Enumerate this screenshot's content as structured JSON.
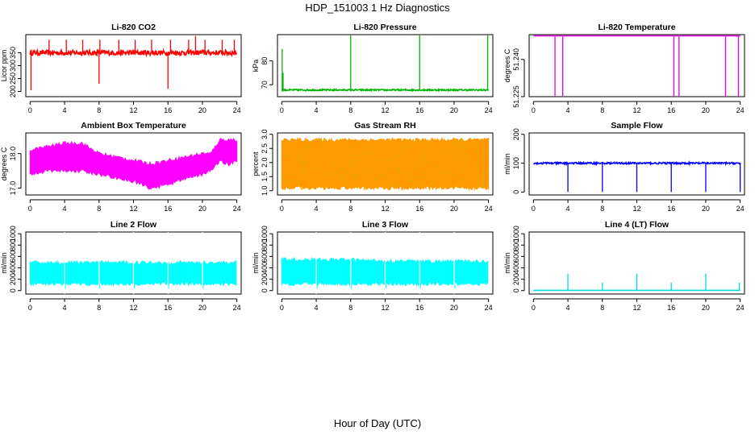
{
  "title": "HDP_151003  1 Hz Diagnostics",
  "xlabel": "Hour of Day (UTC)",
  "chart_data": [
    {
      "type": "line",
      "title": "Li-820 CO2",
      "ylabel": "Licor ppm",
      "color": "#ff0000",
      "xlim": [
        -0.5,
        24.5
      ],
      "ylim": [
        180,
        420
      ],
      "xticks": [
        "0",
        "4",
        "8",
        "12",
        "16",
        "20",
        "24"
      ],
      "yticks": [
        "200",
        "250",
        "300",
        "350"
      ],
      "baseline": 350,
      "noise": 10,
      "spikes": [
        [
          0.1,
          205
        ],
        [
          2.2,
          400
        ],
        [
          4.2,
          400
        ],
        [
          6.1,
          400
        ],
        [
          8.0,
          230
        ],
        [
          8.1,
          400
        ],
        [
          10.3,
          400
        ],
        [
          12.2,
          400
        ],
        [
          14.1,
          400
        ],
        [
          16.0,
          210
        ],
        [
          16.3,
          400
        ],
        [
          18.4,
          400
        ],
        [
          19.2,
          415
        ],
        [
          20.3,
          400
        ],
        [
          22.3,
          400
        ],
        [
          23.7,
          400
        ]
      ],
      "series": [
        {
          "name": "CO2",
          "x_range": [
            0,
            24
          ]
        }
      ]
    },
    {
      "type": "line",
      "title": "Li-820 Pressure",
      "ylabel": "kPa",
      "color": "#00b400",
      "xlim": [
        -0.5,
        24.5
      ],
      "ylim": [
        65,
        91
      ],
      "xticks": [
        "0",
        "4",
        "8",
        "12",
        "16",
        "20",
        "24"
      ],
      "yticks": [
        "70",
        "80"
      ],
      "baseline": 67.8,
      "noise": 0.3,
      "spikes": [
        [
          0.05,
          85
        ],
        [
          0.15,
          75
        ],
        [
          8.0,
          91
        ],
        [
          16.0,
          91
        ],
        [
          23.9,
          91
        ]
      ],
      "series": [
        {
          "name": "Pressure",
          "x_range": [
            0,
            24
          ]
        }
      ]
    },
    {
      "type": "line",
      "title": "Li-820 Temperature",
      "ylabel": "degrees C",
      "color": "#e600e6",
      "xlim": [
        -0.5,
        24.5
      ],
      "ylim": [
        51.225,
        51.25
      ],
      "xticks": [
        "0",
        "4",
        "8",
        "12",
        "16",
        "20",
        "24"
      ],
      "yticks": [
        "51.225",
        "51.240"
      ],
      "baseline": 51.2495,
      "noise": 0,
      "spikes": [
        [
          2.5,
          51.225
        ],
        [
          3.4,
          51.225
        ],
        [
          16.3,
          51.225
        ],
        [
          16.9,
          51.225
        ],
        [
          22.3,
          51.225
        ],
        [
          23.8,
          51.225
        ]
      ],
      "series": [
        {
          "name": "Temperature",
          "x_range": [
            0,
            24
          ]
        }
      ]
    },
    {
      "type": "area",
      "title": "Ambient Box Temperature",
      "ylabel": "degrees C",
      "color": "#ff00ff",
      "xlim": [
        -0.5,
        24.5
      ],
      "ylim": [
        16.8,
        18.6
      ],
      "xticks": [
        "0",
        "4",
        "8",
        "12",
        "16",
        "20",
        "24"
      ],
      "yticks": [
        "17.0",
        "18.0"
      ],
      "band_x": [
        0,
        2,
        4,
        6,
        8,
        10,
        12,
        14,
        16,
        18,
        20,
        21,
        22,
        23,
        24
      ],
      "band_low": [
        17.4,
        17.5,
        17.5,
        17.5,
        17.4,
        17.3,
        17.2,
        17.0,
        17.1,
        17.3,
        17.4,
        17.5,
        17.8,
        17.7,
        17.8
      ],
      "band_high": [
        18.1,
        18.2,
        18.3,
        18.3,
        18.0,
        17.9,
        17.8,
        17.7,
        17.8,
        17.9,
        18.0,
        18.0,
        18.4,
        18.4,
        18.4
      ],
      "series": [
        {
          "name": "Box Temperature",
          "x_range": [
            0,
            24
          ]
        }
      ]
    },
    {
      "type": "area",
      "title": "Gas Stream RH",
      "ylabel": "percent",
      "color": "#ff9900",
      "color2": "#ddaa00",
      "xlim": [
        -0.5,
        24.5
      ],
      "ylim": [
        0.85,
        3.05
      ],
      "xticks": [
        "0",
        "4",
        "8",
        "12",
        "16",
        "20",
        "24"
      ],
      "yticks": [
        "1.0",
        "1.5",
        "2.0",
        "2.5",
        "3.0"
      ],
      "band_x": [
        0,
        24
      ],
      "band_low": [
        1.1,
        1.1
      ],
      "band_high": [
        2.8,
        2.8
      ],
      "series": [
        {
          "name": "RH",
          "x_range": [
            0,
            24
          ]
        }
      ]
    },
    {
      "type": "line",
      "title": "Sample Flow",
      "ylabel": "ml/min",
      "color": "#0000ff",
      "xlim": [
        -0.5,
        24.5
      ],
      "ylim": [
        -10,
        205
      ],
      "xticks": [
        "0",
        "4",
        "8",
        "12",
        "16",
        "20",
        "24"
      ],
      "yticks": [
        "0",
        "100",
        "200"
      ],
      "baseline": 100,
      "noise": 3,
      "spikes": [
        [
          4.0,
          0
        ],
        [
          8.0,
          0
        ],
        [
          12.0,
          0
        ],
        [
          16.0,
          0
        ],
        [
          20.0,
          0
        ],
        [
          24.0,
          0
        ]
      ],
      "series": [
        {
          "name": "Sample Flow",
          "x_range": [
            0,
            24
          ]
        }
      ]
    },
    {
      "type": "area",
      "title": "Line 2 Flow",
      "ylabel": "ml/min",
      "color": "#00ffff",
      "xlim": [
        -0.5,
        24.5
      ],
      "ylim": [
        -60,
        1030
      ],
      "xticks": [
        "0",
        "4",
        "8",
        "12",
        "16",
        "20",
        "24"
      ],
      "yticks": [
        "0",
        "200",
        "400",
        "600",
        "800",
        "1000"
      ],
      "band_x": [
        0,
        23.9
      ],
      "band_low": [
        120,
        120
      ],
      "band_high": [
        490,
        490
      ],
      "gaps": [
        4.0,
        8.0,
        12.0,
        16.0,
        20.0
      ],
      "series": [
        {
          "name": "Line 2",
          "x_range": [
            0,
            24
          ]
        }
      ]
    },
    {
      "type": "area",
      "title": "Line 3 Flow",
      "ylabel": "ml/min",
      "color": "#00ffff",
      "xlim": [
        -0.5,
        24.5
      ],
      "ylim": [
        -60,
        1030
      ],
      "xticks": [
        "0",
        "4",
        "8",
        "12",
        "16",
        "20",
        "24"
      ],
      "yticks": [
        "0",
        "200",
        "400",
        "600",
        "800",
        "1000"
      ],
      "band_x": [
        0,
        4,
        8,
        12,
        16,
        20,
        23.9
      ],
      "band_low": [
        120,
        120,
        120,
        120,
        120,
        120,
        120
      ],
      "band_high": [
        550,
        540,
        540,
        520,
        510,
        510,
        510
      ],
      "gaps": [
        4.0,
        8.0,
        12.0,
        16.0,
        20.0
      ],
      "series": [
        {
          "name": "Line 3",
          "x_range": [
            0,
            24
          ]
        }
      ]
    },
    {
      "type": "line",
      "title": "Line 4 (LT) Flow",
      "ylabel": "ml/min",
      "color": "#00dddd",
      "xlim": [
        -0.5,
        24.5
      ],
      "ylim": [
        -60,
        1030
      ],
      "xticks": [
        "0",
        "4",
        "8",
        "12",
        "16",
        "20",
        "24"
      ],
      "yticks": [
        "0",
        "200",
        "400",
        "600",
        "800",
        "1000"
      ],
      "baseline": 5,
      "noise": 0,
      "spikes": [
        [
          4.0,
          300
        ],
        [
          8.0,
          140
        ],
        [
          12.0,
          300
        ],
        [
          16.0,
          140
        ],
        [
          20.0,
          300
        ],
        [
          23.9,
          140
        ]
      ],
      "series": [
        {
          "name": "Line 4",
          "x_range": [
            0,
            24
          ]
        }
      ]
    }
  ]
}
